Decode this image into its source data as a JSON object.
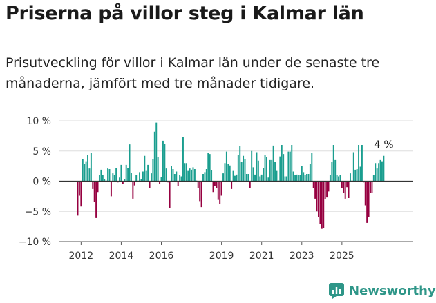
{
  "header": {
    "title": "Priserna på villor steg i Kalmar län",
    "subtitle": "Prisutveckling för villor i Kalmar län under de senaste tre månaderna, jämfört med tre månader tidigare."
  },
  "brand": {
    "name": "Newsworthy",
    "icon": "newsworthy-logo-icon"
  },
  "chart_data": {
    "type": "bar",
    "title": "",
    "xlabel": "",
    "ylabel": "",
    "x_start": "2011-11",
    "x_step": "month",
    "x_ticks": [
      "2012",
      "2014",
      "2016",
      "2019",
      "2021",
      "2023",
      "2025"
    ],
    "y_ticks": [
      "10 %",
      "5 %",
      "0 %",
      "−5 %",
      "−10 %"
    ],
    "ylim": [
      -10,
      10
    ],
    "grid": true,
    "colors": {
      "positive": "#1a9e8f",
      "negative": "#960040"
    },
    "annotation": {
      "text": "4 %",
      "value": 4
    },
    "values": [
      -5.7,
      -2.4,
      -4.2,
      3.7,
      2.8,
      3.3,
      4.3,
      2.1,
      4.7,
      -1.3,
      -3.4,
      -6.1,
      -1.8,
      1.0,
      1.9,
      1.0,
      0.4,
      0.1,
      2.1,
      2.0,
      -2.5,
      1.3,
      1.0,
      2.2,
      -0.2,
      0.6,
      2.7,
      -0.5,
      0.3,
      2.7,
      2.2,
      6.1,
      1.4,
      -2.9,
      -0.7,
      1.0,
      0.1,
      1.5,
      0.3,
      1.6,
      4.2,
      1.7,
      2.7,
      -1.2,
      1.3,
      3.6,
      8.2,
      9.7,
      4.0,
      -0.5,
      0.7,
      6.7,
      6.2,
      2.1,
      -0.2,
      -4.4,
      2.5,
      2.0,
      1.2,
      1.6,
      -0.8,
      1.0,
      0.8,
      7.3,
      3.0,
      3.0,
      1.7,
      2.1,
      1.9,
      2.3,
      2.0,
      0.1,
      -1.1,
      -3.3,
      -4.3,
      1.2,
      1.5,
      2.0,
      4.7,
      4.5,
      1.8,
      -1.8,
      -0.8,
      -1.2,
      -3.1,
      -3.8,
      -2.4,
      1.3,
      3.0,
      4.9,
      2.9,
      2.6,
      -1.3,
      1.7,
      0.9,
      1.1,
      4.3,
      5.8,
      3.2,
      4.2,
      3.7,
      1.2,
      1.2,
      -1.2,
      5.0,
      2.3,
      1.1,
      4.8,
      3.4,
      0.8,
      1.1,
      2.2,
      4.3,
      4.0,
      0.6,
      3.5,
      3.5,
      5.9,
      3.2,
      1.7,
      0.1,
      4.1,
      6.0,
      4.5,
      0.8,
      0.8,
      4.9,
      4.9,
      6.0,
      1.6,
      1.0,
      1.1,
      1.0,
      1.0,
      2.5,
      1.5,
      1.0,
      1.2,
      1.2,
      2.8,
      4.7,
      -1.1,
      -2.9,
      -5.0,
      -5.9,
      -7.1,
      -7.9,
      -7.8,
      -3.0,
      -2.7,
      -1.7,
      1.0,
      3.2,
      6.0,
      3.5,
      1.0,
      0.8,
      1.0,
      -1.1,
      -1.9,
      -2.9,
      -1.0,
      -2.8,
      1.3,
      0.1,
      4.8,
      1.9,
      2.0,
      6.0,
      2.4,
      6.0,
      -0.2,
      -4.0,
      -6.9,
      -6.0,
      -2.0,
      -2.0,
      1.0,
      3.0,
      2.1,
      3.0,
      3.5,
      3.3,
      4.2
    ]
  }
}
